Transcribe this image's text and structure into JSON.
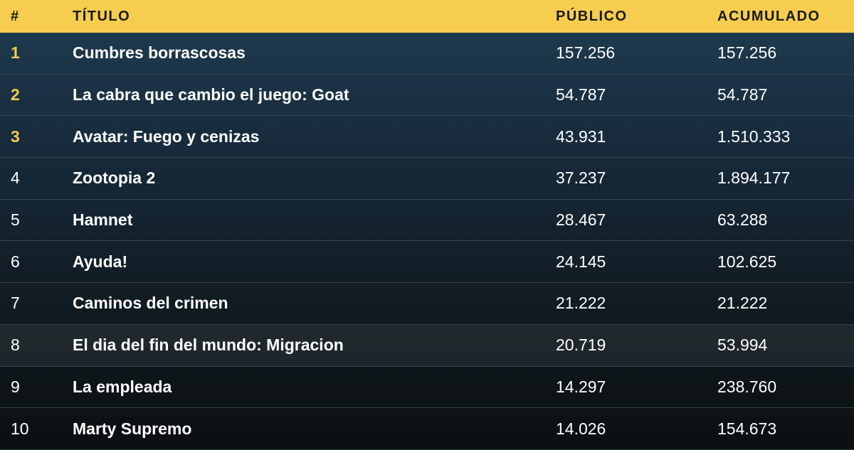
{
  "table": {
    "header": [
      "#",
      "TÍTULO",
      "PÚBLICO",
      "ACUMULADO"
    ],
    "rows": [
      [
        "1",
        "Cumbres borrascosas",
        "157.256",
        "157.256"
      ],
      [
        "2",
        "La cabra que cambio el juego: Goat",
        "54.787",
        "54.787"
      ],
      [
        "3",
        "Avatar: Fuego y cenizas",
        "43.931",
        "1.510.333"
      ],
      [
        "4",
        "Zootopia 2",
        "37.237",
        "1.894.177"
      ],
      [
        "5",
        "Hamnet",
        "28.467",
        "63.288"
      ],
      [
        "6",
        "Ayuda!",
        "24.145",
        "102.625"
      ],
      [
        "7",
        "Caminos del crimen",
        "21.222",
        "21.222"
      ],
      [
        "8",
        "El dia del fin del mundo: Migracion",
        "20.719",
        "53.994"
      ],
      [
        "9",
        "La empleada",
        "14.297",
        "238.760"
      ],
      [
        "10",
        "Marty Supremo",
        "14.026",
        "154.673"
      ]
    ]
  }
}
